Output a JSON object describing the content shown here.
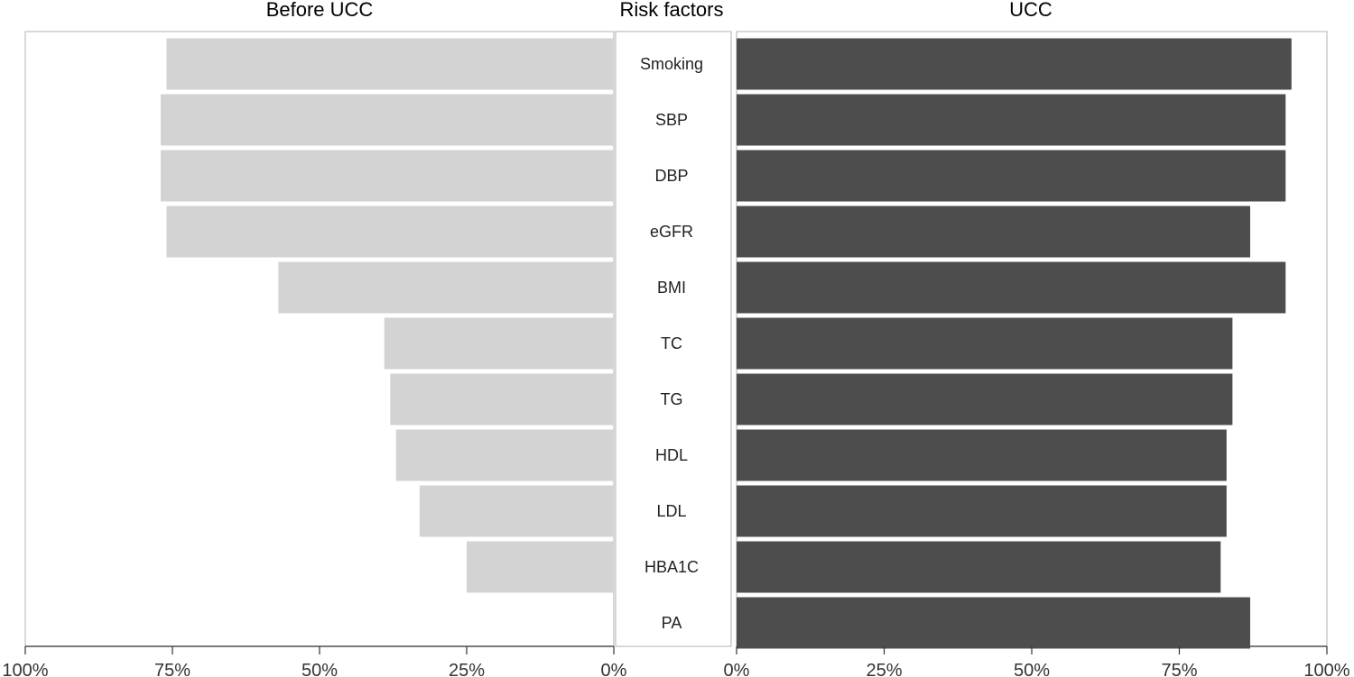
{
  "chart_data": {
    "type": "bar",
    "layout": "back-to-back horizontal bars",
    "panel_titles": {
      "left": "Before UCC",
      "center": "Risk factors",
      "right": "UCC"
    },
    "categories": [
      "Smoking",
      "SBP",
      "DBP",
      "eGFR",
      "BMI",
      "TC",
      "TG",
      "HDL",
      "LDL",
      "HBA1C",
      "PA"
    ],
    "series": [
      {
        "name": "Before UCC",
        "values": [
          76,
          77,
          77,
          76,
          57,
          39,
          38,
          37,
          33,
          25,
          null
        ],
        "color": "#d3d3d3"
      },
      {
        "name": "UCC",
        "values": [
          94,
          93,
          93,
          87,
          93,
          84,
          84,
          83,
          83,
          82,
          87
        ],
        "color": "#4d4d4d"
      }
    ],
    "xlim": [
      0,
      100
    ],
    "left_axis_ticks": [
      "100%",
      "75%",
      "50%",
      "25%",
      "0%"
    ],
    "right_axis_ticks": [
      "0%",
      "25%",
      "50%",
      "75%",
      "100%"
    ],
    "grid": false,
    "legend": "none"
  }
}
